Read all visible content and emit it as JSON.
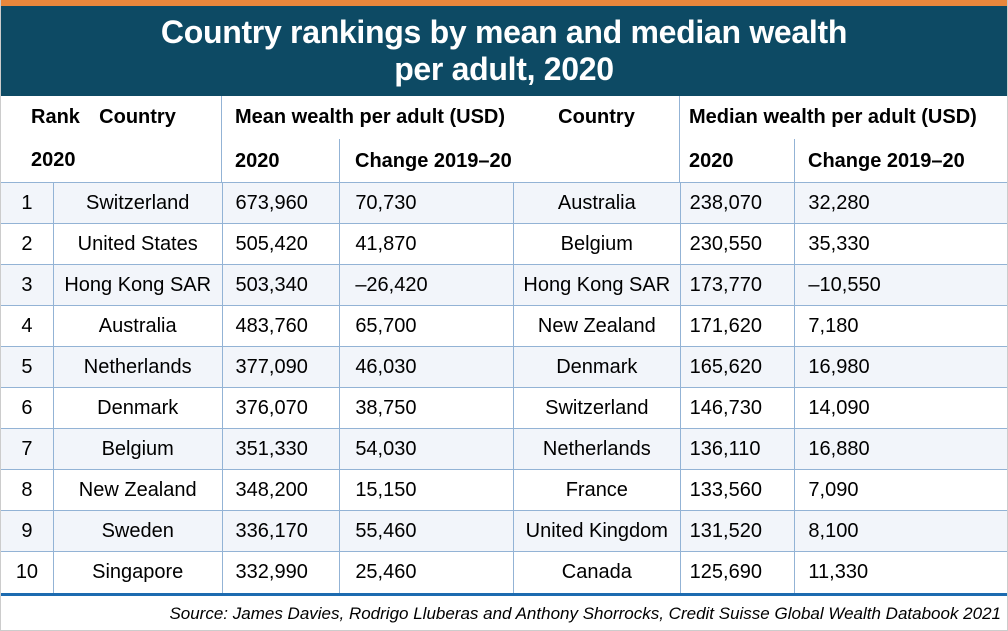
{
  "title": {
    "line1": "Country rankings by mean and median wealth",
    "line2": "per adult, 2020"
  },
  "header": {
    "rank_label": "Rank",
    "rank_year": "2020",
    "country_left": "Country",
    "mean_group": "Mean wealth per adult (USD)",
    "country_right": "Country",
    "median_group": "Median wealth per adult (USD)",
    "year_sub_mean": "2020",
    "change_sub_mean": "Change 2019–20",
    "year_sub_median": "2020",
    "change_sub_median": "Change 2019–20"
  },
  "chart_data": {
    "type": "table",
    "title": "Country rankings by mean and median wealth per adult, 2020",
    "columns": [
      "Rank 2020",
      "Country",
      "Mean wealth per adult (USD) 2020",
      "Mean wealth change 2019–20",
      "Country",
      "Median wealth per adult (USD) 2020",
      "Median wealth change 2019–20"
    ],
    "rows": [
      {
        "rank": "1",
        "mean_country": "Switzerland",
        "mean_2020": "673,960",
        "mean_change": "70,730",
        "median_country": "Australia",
        "median_2020": "238,070",
        "median_change": "32,280"
      },
      {
        "rank": "2",
        "mean_country": "United States",
        "mean_2020": "505,420",
        "mean_change": "41,870",
        "median_country": "Belgium",
        "median_2020": "230,550",
        "median_change": "35,330"
      },
      {
        "rank": "3",
        "mean_country": "Hong Kong SAR",
        "mean_2020": "503,340",
        "mean_change": "–26,420",
        "median_country": "Hong Kong SAR",
        "median_2020": "173,770",
        "median_change": "–10,550"
      },
      {
        "rank": "4",
        "mean_country": "Australia",
        "mean_2020": "483,760",
        "mean_change": "65,700",
        "median_country": "New Zealand",
        "median_2020": "171,620",
        "median_change": "7,180"
      },
      {
        "rank": "5",
        "mean_country": "Netherlands",
        "mean_2020": "377,090",
        "mean_change": "46,030",
        "median_country": "Denmark",
        "median_2020": "165,620",
        "median_change": "16,980"
      },
      {
        "rank": "6",
        "mean_country": "Denmark",
        "mean_2020": "376,070",
        "mean_change": "38,750",
        "median_country": "Switzerland",
        "median_2020": "146,730",
        "median_change": "14,090"
      },
      {
        "rank": "7",
        "mean_country": "Belgium",
        "mean_2020": "351,330",
        "mean_change": "54,030",
        "median_country": "Netherlands",
        "median_2020": "136,110",
        "median_change": "16,880"
      },
      {
        "rank": "8",
        "mean_country": "New Zealand",
        "mean_2020": "348,200",
        "mean_change": "15,150",
        "median_country": "France",
        "median_2020": "133,560",
        "median_change": "7,090"
      },
      {
        "rank": "9",
        "mean_country": "Sweden",
        "mean_2020": "336,170",
        "mean_change": "55,460",
        "median_country": "United Kingdom",
        "median_2020": "131,520",
        "median_change": "8,100"
      },
      {
        "rank": "10",
        "mean_country": "Singapore",
        "mean_2020": "332,990",
        "mean_change": "25,460",
        "median_country": "Canada",
        "median_2020": "125,690",
        "median_change": "11,330"
      }
    ]
  },
  "source": "Source: James Davies, Rodrigo Lluberas and Anthony Shorrocks, Credit Suisse Global Wealth Databook 2021",
  "colors": {
    "accent_orange": "#E8873C",
    "header_teal": "#0D4A64",
    "row_alt": "#F2F5FA",
    "grid_line": "#93B3D5",
    "bottom_bar": "#1C6BB0",
    "text": "#000000"
  }
}
